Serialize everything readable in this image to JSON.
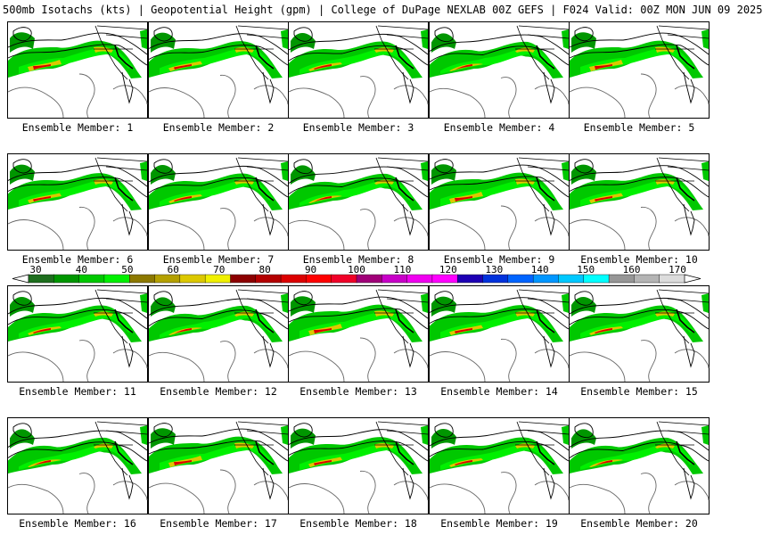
{
  "title": "500mb Isotachs (kts) | Geopotential Height (gpm) | College of DuPage NEXLAB   00Z GEFS | F024 Valid: 00Z MON JUN 09 2025",
  "panels": [
    {
      "label": "Ensemble Member: 1"
    },
    {
      "label": "Ensemble Member: 2"
    },
    {
      "label": "Ensemble Member: 3"
    },
    {
      "label": "Ensemble Member: 4"
    },
    {
      "label": "Ensemble Member: 5"
    },
    {
      "label": "Ensemble Member: 6"
    },
    {
      "label": "Ensemble Member: 7"
    },
    {
      "label": "Ensemble Member: 8"
    },
    {
      "label": "Ensemble Member: 9"
    },
    {
      "label": "Ensemble Member: 10"
    },
    {
      "label": "Ensemble Member: 11"
    },
    {
      "label": "Ensemble Member: 12"
    },
    {
      "label": "Ensemble Member: 13"
    },
    {
      "label": "Ensemble Member: 14"
    },
    {
      "label": "Ensemble Member: 15"
    },
    {
      "label": "Ensemble Member: 16"
    },
    {
      "label": "Ensemble Member: 17"
    },
    {
      "label": "Ensemble Member: 18"
    },
    {
      "label": "Ensemble Member: 19"
    },
    {
      "label": "Ensemble Member: 20"
    }
  ],
  "colorbar": {
    "tick_labels": [
      "30",
      "40",
      "50",
      "60",
      "70",
      "80",
      "90",
      "100",
      "110",
      "120",
      "130",
      "140",
      "150",
      "160",
      "170"
    ],
    "colors": [
      "#1e6e1e",
      "#009600",
      "#00c800",
      "#00f000",
      "#8c7800",
      "#b4a000",
      "#dcc800",
      "#f0f000",
      "#8c0000",
      "#b40000",
      "#dc0000",
      "#ff0000",
      "#f00028",
      "#a00078",
      "#c800c8",
      "#f000f0",
      "#ff00ff",
      "#1e00b4",
      "#0032dc",
      "#0064ff",
      "#0096ff",
      "#00c8ff",
      "#00ffff",
      "#969696",
      "#b4b4b4",
      "#dcdcdc"
    ]
  }
}
